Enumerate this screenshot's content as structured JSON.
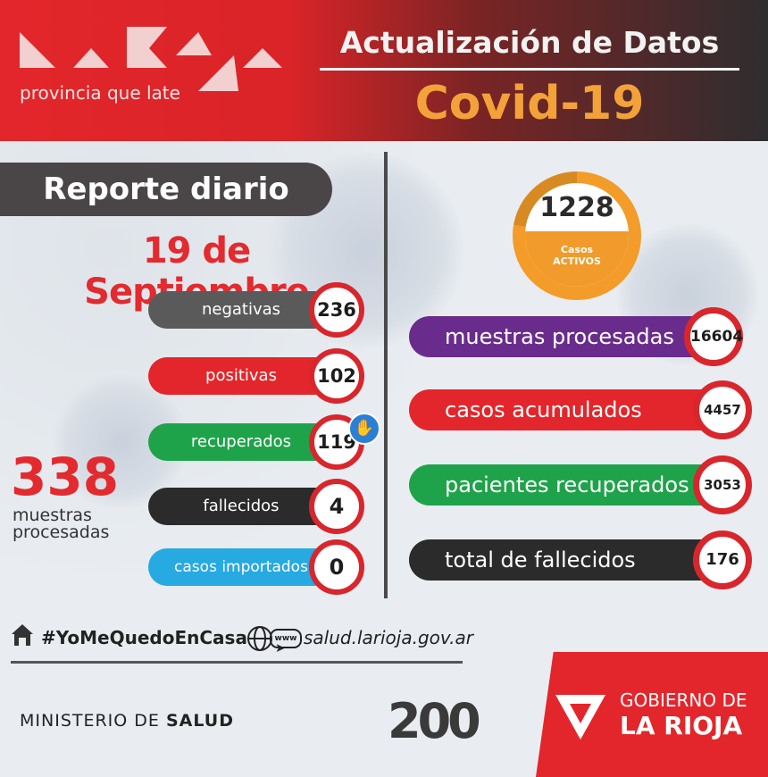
{
  "header": {
    "logo_tagline": "provincia que late",
    "title": "Actualización de Datos",
    "subtitle": "Covid-19"
  },
  "report": {
    "title": "Reporte diario",
    "date": "19 de Septiembre"
  },
  "daily": [
    {
      "label": "negativas",
      "value": "236",
      "color": "#5a5a5a"
    },
    {
      "label": "positivas",
      "value": "102",
      "color": "#e3262b"
    },
    {
      "label": "recuperados",
      "value": "119",
      "color": "#1fa34a"
    },
    {
      "label": "fallecidos",
      "value": "4",
      "color": "#2b2b2b"
    },
    {
      "label": "casos importados",
      "value": "0",
      "color": "#27a9e1"
    }
  ],
  "daily_total": {
    "value": "338",
    "label_line1": "muestras",
    "label_line2": "procesadas"
  },
  "active": {
    "value": "1228",
    "label_line1": "Casos",
    "label_line2": "ACTIVOS"
  },
  "cumulative": [
    {
      "label": "muestras procesadas",
      "value": "16604",
      "color": "#6a2c8c"
    },
    {
      "label": "casos acumulados",
      "value": "4457",
      "color": "#e3262b"
    },
    {
      "label": "pacientes recuperados",
      "value": "3053",
      "color": "#1fa34a"
    },
    {
      "label": "total de fallecidos",
      "value": "176",
      "color": "#2b2b2b"
    }
  ],
  "footer": {
    "hashtag": "#YoMeQuedoEnCasa",
    "www_label": "www",
    "website": "salud.larioja.gov.ar",
    "ministry_prefix": "MINISTERIO DE ",
    "ministry_bold": "SALUD",
    "anniversary": "200",
    "gov_line1": "GOBIERNO DE",
    "gov_line2": "LA RIOJA"
  }
}
